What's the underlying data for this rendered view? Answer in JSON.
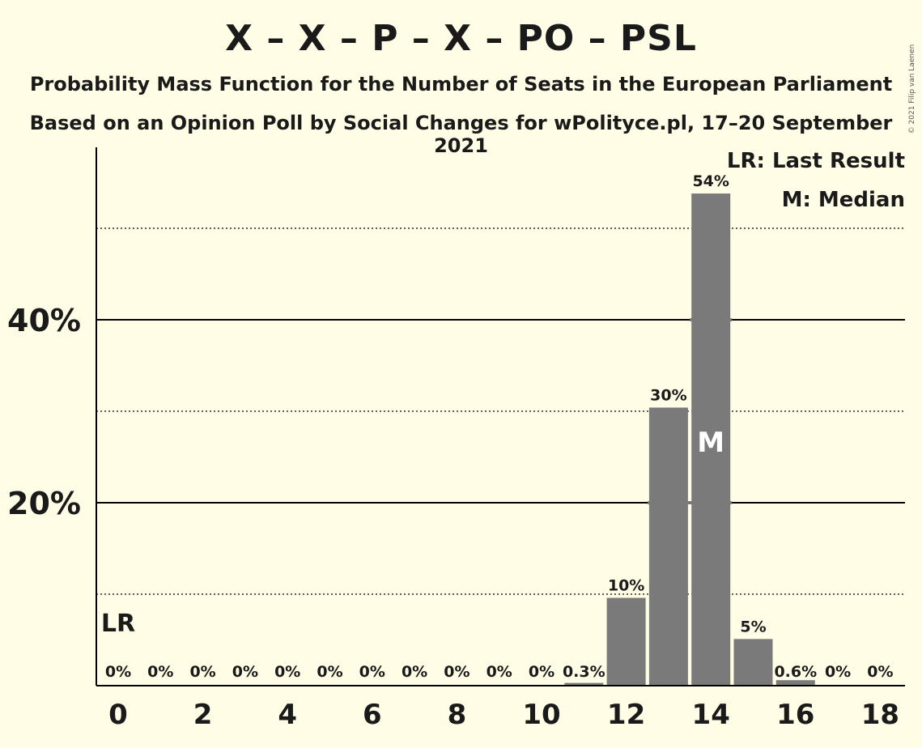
{
  "header": {
    "title": "X – X – P – X – PO – PSL",
    "subtitle1": "Probability Mass Function for the Number of Seats in the European Parliament",
    "subtitle2": "Based on an Opinion Poll by Social Changes for wPolityce.pl, 17–20 September 2021",
    "copyright": "© 2021 Filip van Laenen"
  },
  "legend": {
    "last_result": "LR: Last Result",
    "median": "M: Median"
  },
  "markers": {
    "last_result_label": "LR",
    "last_result_seat": 0,
    "median_label": "M",
    "median_seat": 14
  },
  "colors": {
    "background": "#FFFDE5",
    "bar": "#7A7A7A",
    "text": "#1A1A1A"
  },
  "chart_data": {
    "type": "bar",
    "x": [
      0,
      1,
      2,
      3,
      4,
      5,
      6,
      7,
      8,
      9,
      10,
      11,
      12,
      13,
      14,
      15,
      16,
      17,
      18
    ],
    "values": [
      0,
      0,
      0,
      0,
      0,
      0,
      0,
      0,
      0,
      0,
      0,
      0.3,
      9.6,
      30.4,
      53.8,
      5.1,
      0.6,
      0,
      0
    ],
    "data_labels": [
      "0%",
      "0%",
      "0%",
      "0%",
      "0%",
      "0%",
      "0%",
      "0%",
      "0%",
      "0%",
      "0%",
      "0.3%",
      "10%",
      "30%",
      "54%",
      "5%",
      "0.6%",
      "0%",
      "0%"
    ],
    "x_tick_labels": [
      "0",
      "2",
      "4",
      "6",
      "8",
      "10",
      "12",
      "14",
      "16",
      "18"
    ],
    "y_tick_labels": [
      "20%",
      "40%"
    ],
    "ylim": [
      0,
      58
    ],
    "solid_grid": [
      20,
      40
    ],
    "dotted_grid": [
      10,
      30,
      50
    ],
    "grid": true,
    "legend_position": "top-right"
  }
}
